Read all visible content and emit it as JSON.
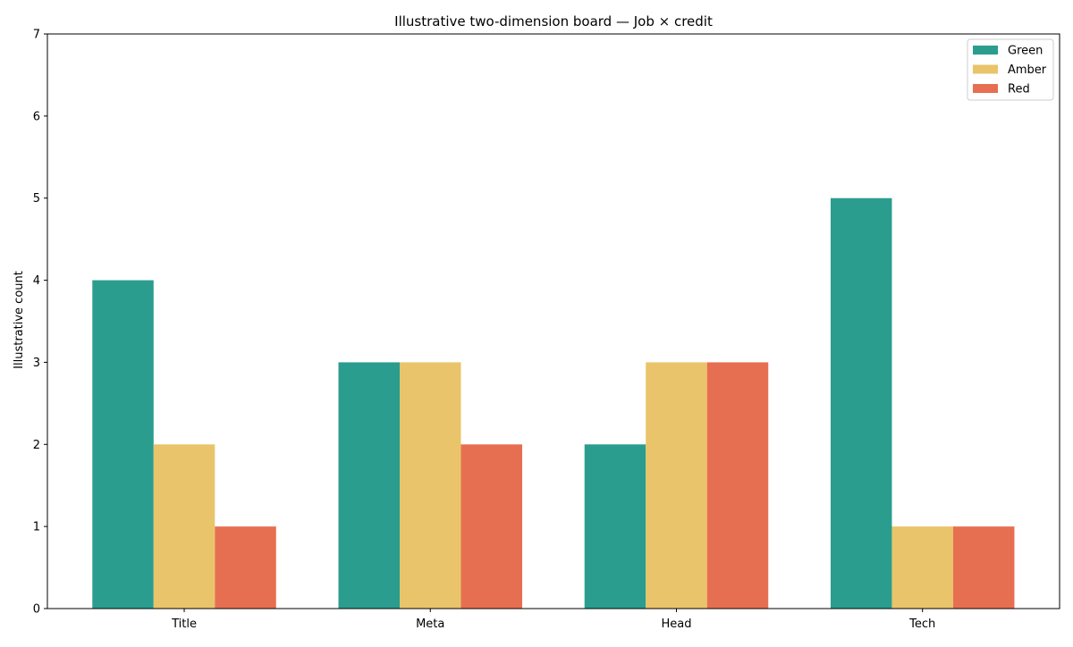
{
  "chart_data": {
    "type": "bar",
    "title": "Illustrative two-dimension board — Job × credit",
    "xlabel": "",
    "ylabel": "Illustrative count",
    "categories": [
      "Title",
      "Meta",
      "Head",
      "Tech"
    ],
    "series": [
      {
        "name": "Green",
        "color": "#2a9d8f",
        "values": [
          4,
          3,
          2,
          5
        ]
      },
      {
        "name": "Amber",
        "color": "#e9c46a",
        "values": [
          2,
          3,
          3,
          1
        ]
      },
      {
        "name": "Red",
        "color": "#e76f51",
        "values": [
          1,
          2,
          3,
          1
        ]
      }
    ],
    "ylim": [
      0,
      7
    ],
    "yticks": [
      "0",
      "1",
      "2",
      "3",
      "4",
      "5",
      "6",
      "7"
    ],
    "grid": false,
    "legend_position": "top-right"
  }
}
